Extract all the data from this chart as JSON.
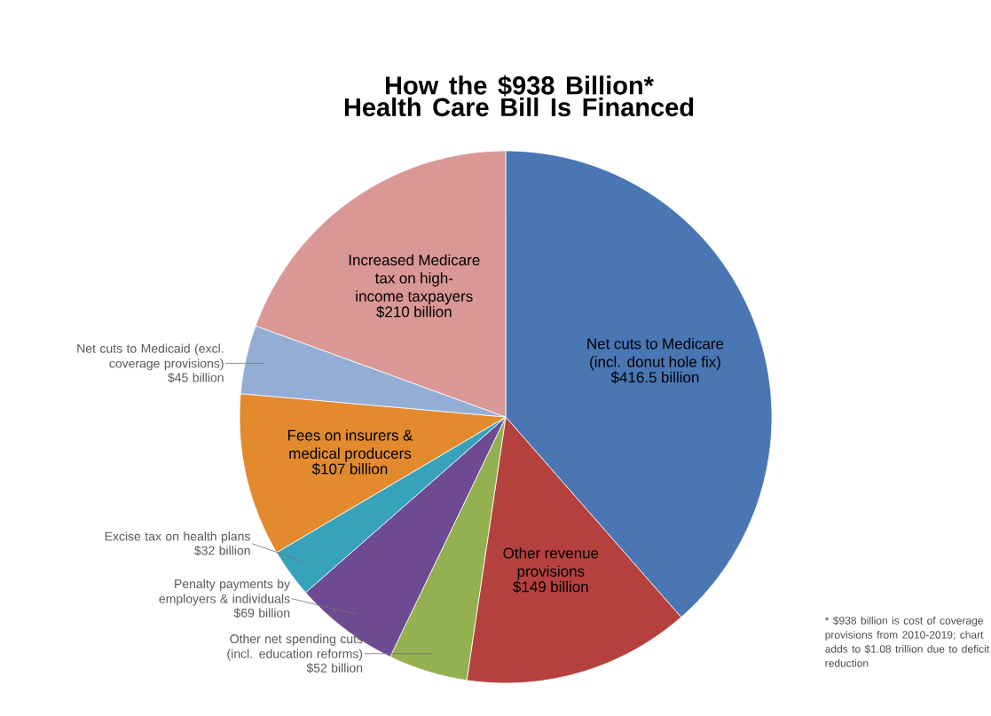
{
  "chart_data": {
    "type": "pie",
    "title": "How the $938 Billion* Health Care Bill Is Financed",
    "categories": [
      "Net cuts to Medicare (incl. donut hole fix)",
      "Other revenue provisions",
      "Other net spending cuts (incl. education reforms)",
      "Penalty payments by employers & individuals",
      "Excise tax on health plans",
      "Fees on insurers & medical producers",
      "Net cuts to Medicaid (excl. coverage provisions)",
      "Increased Medicare tax on high-income taxpayers"
    ],
    "values": [
      416.5,
      149,
      52,
      69,
      32,
      107,
      45,
      210
    ],
    "value_labels": [
      "$416.5 billion",
      "$149 billion",
      "$52 billion",
      "$69 billion",
      "$32 billion",
      "$107 billion",
      "$45 billion",
      "$210 billion"
    ],
    "colors": [
      "#4a76b4",
      "#b5413f",
      "#93b150",
      "#6e4a92",
      "#36a3bb",
      "#e38a2e",
      "#94add5",
      "#d99795"
    ],
    "annotations": [
      "* $938 billion is cost of coverage provisions from 2010-2019; chart adds to $1.08 trillion due to deficit reduction"
    ]
  }
}
